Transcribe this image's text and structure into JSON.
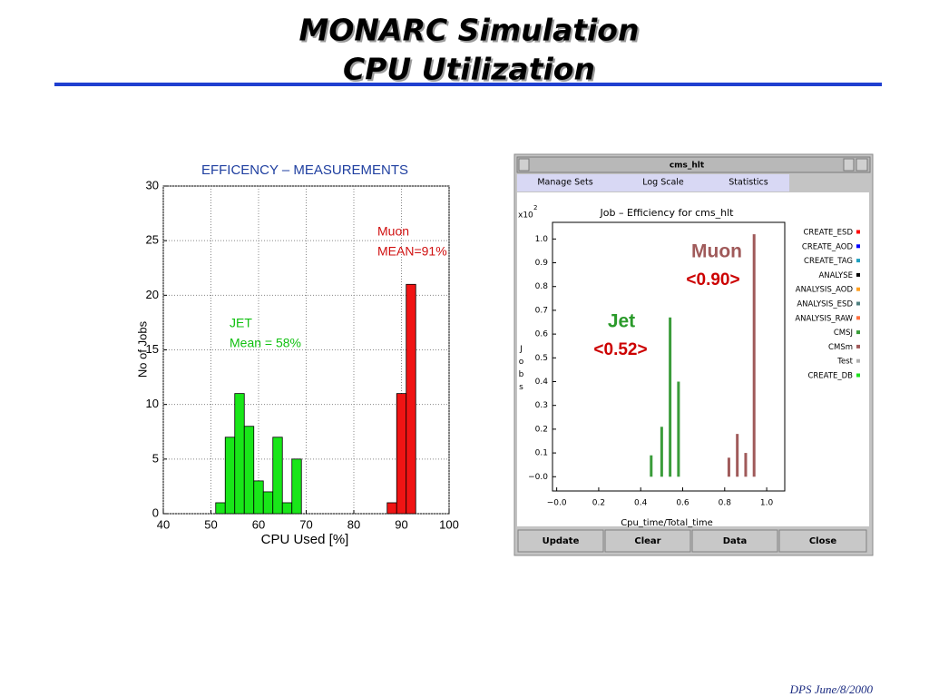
{
  "slide": {
    "title_lines": [
      "MONARC Simulation",
      "CPU Utilization"
    ],
    "footer": "DPS June/8/2000"
  },
  "window": {
    "title": "cms_hlt",
    "menu": [
      "Manage  Sets",
      "Log  Scale",
      "Statistics"
    ],
    "buttons": [
      "Update",
      "Clear",
      "Data",
      "Close"
    ]
  },
  "chart_data": [
    {
      "type": "histogram",
      "title": "EFFICENCY – MEASUREMENTS",
      "x_label": "CPU Used  [%]",
      "y_label": "No of Jobs",
      "xlim": [
        40,
        100
      ],
      "xticks": [
        40,
        50,
        60,
        70,
        80,
        90,
        100
      ],
      "ylim": [
        0,
        30
      ],
      "yticks": [
        0,
        5,
        10,
        15,
        20,
        25,
        30
      ],
      "grid": true,
      "series": [
        {
          "name": "JET",
          "color": "#19e619",
          "bins": [
            51,
            53,
            55,
            57,
            59,
            61,
            63,
            65,
            67,
            69
          ],
          "values": [
            1,
            7,
            11,
            8,
            3,
            2,
            7,
            1,
            5
          ]
        },
        {
          "name": "Muon",
          "color": "#f01414",
          "bins": [
            87,
            89,
            91,
            93
          ],
          "values": [
            1,
            11,
            21
          ]
        }
      ],
      "annotations": [
        {
          "text": "Muon",
          "color": "#d01010"
        },
        {
          "text": "MEAN=91%",
          "color": "#d01010"
        },
        {
          "text": "JET",
          "color": "#10c010"
        },
        {
          "text": "Mean = 58%",
          "color": "#10c010"
        }
      ]
    },
    {
      "type": "bar",
      "title": "Job – Efficiency for cms_hlt",
      "x_label": "Cpu_time/Total_time",
      "y_label": "Jobs",
      "y_multiplier": {
        "base": "x10",
        "exponent": "2"
      },
      "xlim": [
        -0.02,
        1.086
      ],
      "xticks": [
        {
          "value": 0,
          "label": "−0.0"
        },
        0.2,
        0.4,
        0.6,
        0.8,
        {
          "value": 1,
          "label": "1.0"
        }
      ],
      "ylim": [
        -0.06,
        1.07
      ],
      "yticks": [
        {
          "value": 0,
          "label": "−0.0"
        },
        0.1,
        0.2,
        0.3,
        0.4,
        0.5,
        0.6,
        0.7,
        0.8,
        0.9,
        {
          "value": 1,
          "label": "1.0"
        }
      ],
      "grid": false,
      "series": [
        {
          "name": "CREATE_ESD",
          "color": "#ff0000",
          "x": [],
          "values": []
        },
        {
          "name": "CREATE_AOD",
          "color": "#0000ff",
          "x": [],
          "values": []
        },
        {
          "name": "CREATE_TAG",
          "color": "#20a0c0",
          "x": [],
          "values": []
        },
        {
          "name": "ANALYSE",
          "color": "#000000",
          "x": [],
          "values": []
        },
        {
          "name": "ANALYSIS_AOD",
          "color": "#ffa020",
          "x": [],
          "values": []
        },
        {
          "name": "ANALYSIS_ESD",
          "color": "#508080",
          "x": [],
          "values": []
        },
        {
          "name": "ANALYSIS_RAW",
          "color": "#ff7040",
          "x": [],
          "values": []
        },
        {
          "name": "CMSJ",
          "color": "#3a9c3a",
          "x": [
            0.45,
            0.5,
            0.54,
            0.58
          ],
          "values": [
            0.09,
            0.21,
            0.67,
            0.4
          ]
        },
        {
          "name": "CMSm",
          "color": "#a05a5a",
          "x": [
            0.82,
            0.86,
            0.9,
            0.94
          ],
          "values": [
            0.08,
            0.18,
            0.1,
            1.02
          ]
        },
        {
          "name": "Test",
          "color": "#b0b0b0",
          "x": [],
          "values": []
        },
        {
          "name": "CREATE_DB",
          "color": "#20e020",
          "x": [],
          "values": []
        }
      ],
      "annotations": [
        {
          "text": "Muon",
          "color": "#a05a5a"
        },
        {
          "text": "<0.90>",
          "color": "#cc0000"
        },
        {
          "text": "Jet",
          "color": "#2a9a2a"
        },
        {
          "text": "<0.52>",
          "color": "#cc0000"
        }
      ]
    }
  ]
}
